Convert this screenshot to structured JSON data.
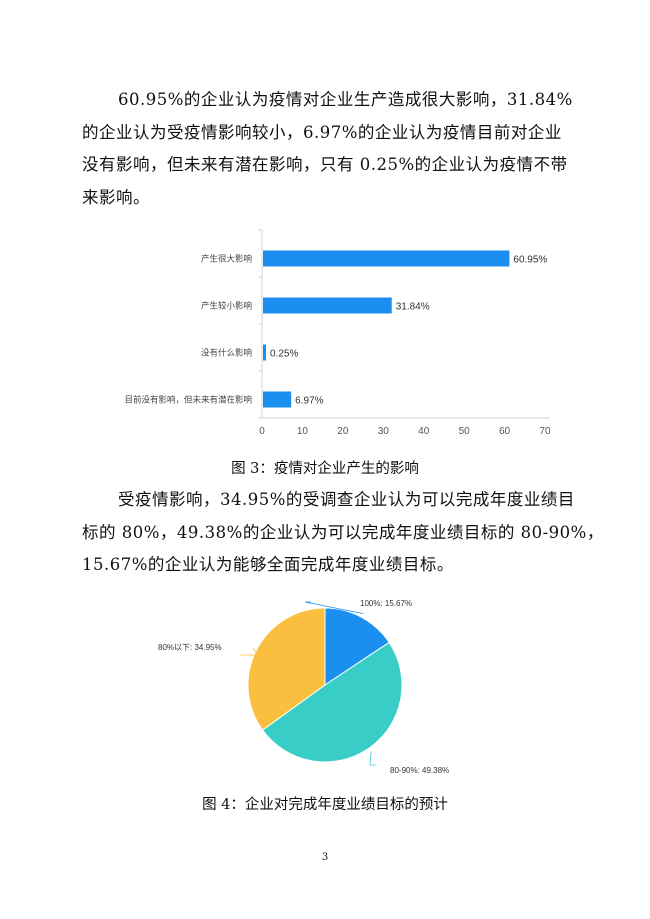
{
  "paragraph1": [
    "60.95%的企业认为疫情对企业生产造成很大影响，31.84%",
    "的企业认为受疫情影响较小，6.97%的企业认为疫情目前对企业",
    "没有影响，但未来有潜在影响，只有 0.25%的企业认为疫情不带",
    "来影响。"
  ],
  "figure3_caption": "图 3：疫情对企业产生的影响",
  "paragraph2": [
    "受疫情影响，34.95%的受调查企业认为可以完成年度业绩目",
    "标的 80%，49.38%的企业认为可以完成年度业绩目标的 80-90%，",
    "15.67%的企业认为能够全面完成年度业绩目标。"
  ],
  "figure4_caption": "图 4：企业对完成年度业绩目标的预计",
  "page_number": "3",
  "chart_data": [
    {
      "type": "bar",
      "orientation": "horizontal",
      "categories": [
        "产生很大影响",
        "产生较小影响",
        "没有什么影响",
        "目前没有影响，但未来有潜在影响"
      ],
      "values": [
        60.95,
        31.84,
        0.25,
        6.97
      ],
      "data_labels": [
        "60.95%",
        "31.84%",
        "0.25%",
        "6.97%"
      ],
      "xlim": [
        0,
        70
      ],
      "xticks": [
        "0",
        "10",
        "20",
        "30",
        "40",
        "50",
        "60",
        "70"
      ],
      "color": "#1a8fef",
      "grid": false
    },
    {
      "type": "pie",
      "slices": [
        {
          "label": "100%: 15.67%",
          "value": 15.67,
          "color": "#1a8fef"
        },
        {
          "label": "80-90%: 49.38%",
          "value": 49.38,
          "color": "#38cdc6"
        },
        {
          "label": "80%以下: 34.95%",
          "value": 34.95,
          "color": "#fbbf3f"
        }
      ],
      "start": "top",
      "direction": "clockwise"
    }
  ]
}
